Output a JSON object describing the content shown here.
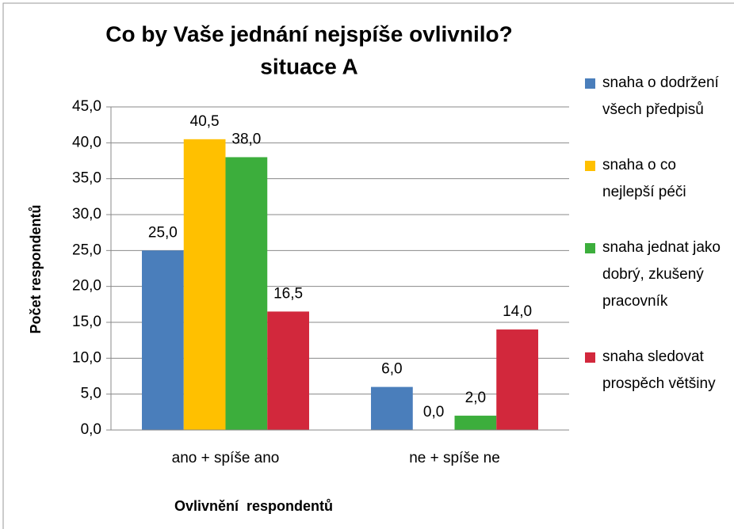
{
  "chart_data": {
    "type": "bar",
    "title": [
      "Co by Vaše jednání nejspíše ovlivnilo?",
      "situace A"
    ],
    "x_label": "Ovlivnění  respondentů",
    "y_label": "Počet respondentů",
    "categories": [
      "ano + spíše ano",
      "ne + spíše ne"
    ],
    "series": [
      {
        "name": "snaha o dodržení všech předpisů",
        "color": "#4a7ebb",
        "values": [
          25,
          6
        ],
        "value_labels": [
          "25,0",
          "6,0"
        ]
      },
      {
        "name": "snaha o co nejlepší péči",
        "color": "#ffc000",
        "values": [
          40.5,
          0
        ],
        "value_labels": [
          "40,5",
          "0,0"
        ]
      },
      {
        "name": "snaha jednat jako dobrý, zkušený pracovník",
        "color": "#3cae3c",
        "values": [
          38,
          2
        ],
        "value_labels": [
          "38,0",
          "2,0"
        ]
      },
      {
        "name": "snaha sledovat prospěch většiny",
        "color": "#d2283c",
        "values": [
          16.5,
          14
        ],
        "value_labels": [
          "16,5",
          "14,0"
        ]
      }
    ],
    "ylim": [
      0,
      45
    ],
    "yticks": [
      {
        "value": 0,
        "label": "0,0"
      },
      {
        "value": 5,
        "label": "5,0"
      },
      {
        "value": 10,
        "label": "10,0"
      },
      {
        "value": 15,
        "label": "15,0"
      },
      {
        "value": 20,
        "label": "20,0"
      },
      {
        "value": 25,
        "label": "25,0"
      },
      {
        "value": 30,
        "label": "30,0"
      },
      {
        "value": 35,
        "label": "35,0"
      },
      {
        "value": 40,
        "label": "40,0"
      },
      {
        "value": 45,
        "label": "45,0"
      }
    ],
    "grid": true,
    "legend": "right"
  }
}
